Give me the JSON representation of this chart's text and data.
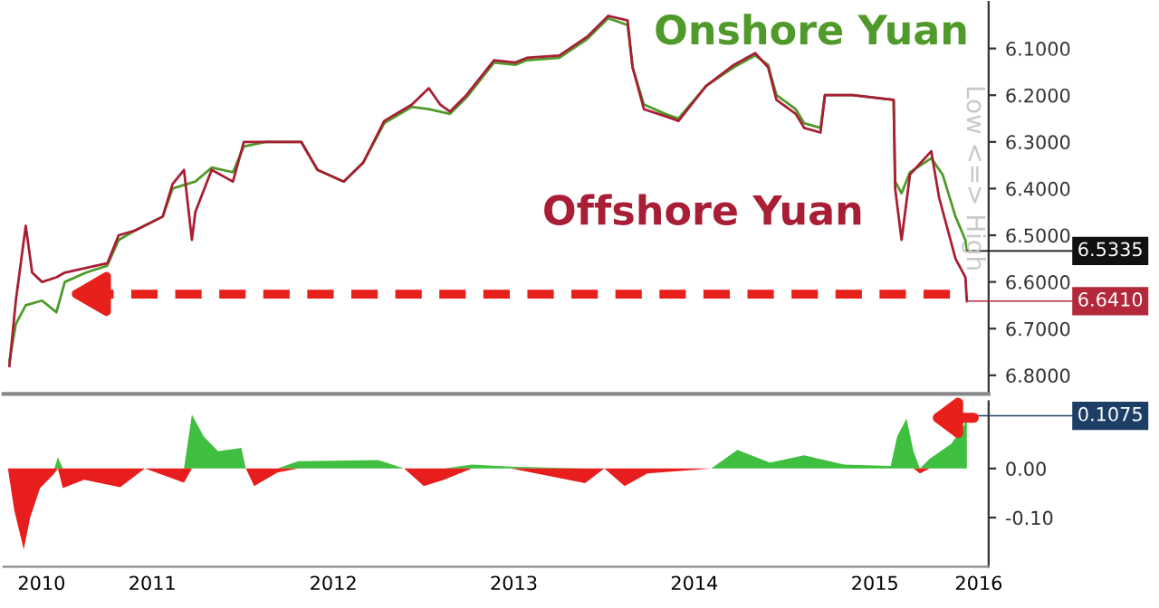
{
  "chart_data": [
    {
      "type": "line",
      "xlim": [
        "2010-09-04",
        "2016-02-17"
      ],
      "ylim": [
        6.84,
        6.0
      ],
      "yticks": [
        {
          "value": 6.1,
          "label": "6.1000"
        },
        {
          "value": 6.2,
          "label": "6.2000"
        },
        {
          "value": 6.3,
          "label": "6.3000"
        },
        {
          "value": 6.4,
          "label": "6.4000"
        },
        {
          "value": 6.5,
          "label": "6.5000"
        },
        {
          "value": 6.6,
          "label": "6.6000"
        },
        {
          "value": 6.7,
          "label": "6.7000"
        },
        {
          "value": 6.8,
          "label": "6.8000"
        }
      ],
      "tick_labels": "y",
      "grid": false,
      "legend": false,
      "ref_lines": [
        {
          "axis": "y",
          "value": 6.626,
          "color": "#e8201c",
          "line_style": "dashed"
        }
      ],
      "series": [
        {
          "name": "Onshore Yuan",
          "color": "#4f9a2a",
          "x": [
            "2010-09-16",
            "2010-09-29",
            "2010-10-19",
            "2010-11-21",
            "2010-12-20",
            "2011-01-06",
            "2011-02-18",
            "2011-04-02",
            "2011-04-25",
            "2011-05-28",
            "2011-07-23",
            "2011-08-12",
            "2011-09-27",
            "2011-10-30",
            "2011-12-12",
            "2012-01-03",
            "2012-02-16",
            "2012-04-28",
            "2012-05-31",
            "2012-07-23",
            "2012-08-31",
            "2012-10-13",
            "2012-12-08",
            "2013-01-11",
            "2013-02-23",
            "2013-03-28",
            "2013-05-23",
            "2013-07-05",
            "2013-07-28",
            "2013-10-02",
            "2013-11-27",
            "2014-01-09",
            "2014-02-17",
            "2014-02-27",
            "2014-03-22",
            "2014-05-04",
            "2014-05-31",
            "2014-07-26",
            "2014-09-20",
            "2014-11-02",
            "2014-11-28",
            "2014-12-15",
            "2015-01-23",
            "2015-02-09",
            "2015-03-14",
            "2015-03-23",
            "2015-05-18",
            "2015-08-09",
            "2015-08-12",
            "2015-08-25",
            "2015-09-11",
            "2015-10-24",
            "2015-11-16",
            "2015-12-12",
            "2016-01-01",
            "2016-01-04"
          ],
          "values": [
            6.77,
            6.69,
            6.65,
            6.64,
            6.665,
            6.6,
            6.58,
            6.565,
            6.51,
            6.49,
            6.46,
            6.4,
            6.385,
            6.355,
            6.365,
            6.31,
            6.3,
            6.3,
            6.36,
            6.385,
            6.345,
            6.26,
            6.225,
            6.23,
            6.24,
            6.205,
            6.13,
            6.135,
            6.125,
            6.12,
            6.08,
            6.035,
            6.05,
            6.14,
            6.22,
            6.24,
            6.25,
            6.18,
            6.14,
            6.115,
            6.135,
            6.2,
            6.23,
            6.26,
            6.27,
            6.2,
            6.2,
            6.21,
            6.385,
            6.41,
            6.365,
            6.335,
            6.37,
            6.46,
            6.51,
            6.5335
          ]
        },
        {
          "name": "Offshore Yuan",
          "color": "#a81e34",
          "x": [
            "2010-09-16",
            "2010-09-29",
            "2010-10-19",
            "2010-11-01",
            "2010-11-21",
            "2010-12-20",
            "2011-01-06",
            "2011-02-18",
            "2011-04-02",
            "2011-04-25",
            "2011-05-28",
            "2011-07-23",
            "2011-08-12",
            "2011-09-04",
            "2011-09-20",
            "2011-09-27",
            "2011-10-30",
            "2011-12-12",
            "2012-01-03",
            "2012-02-16",
            "2012-04-28",
            "2012-05-31",
            "2012-07-23",
            "2012-08-31",
            "2012-10-13",
            "2012-12-08",
            "2013-01-11",
            "2013-02-03",
            "2013-02-23",
            "2013-03-28",
            "2013-05-23",
            "2013-07-05",
            "2013-07-28",
            "2013-10-02",
            "2013-11-27",
            "2014-01-09",
            "2014-02-17",
            "2014-02-27",
            "2014-03-22",
            "2014-05-04",
            "2014-05-31",
            "2014-07-26",
            "2014-09-20",
            "2014-11-02",
            "2014-11-28",
            "2014-12-15",
            "2015-01-23",
            "2015-02-09",
            "2015-03-14",
            "2015-03-23",
            "2015-05-18",
            "2015-08-09",
            "2015-08-12",
            "2015-08-25",
            "2015-09-11",
            "2015-10-24",
            "2015-11-09",
            "2015-12-12",
            "2016-01-01",
            "2016-01-04"
          ],
          "values": [
            6.78,
            6.64,
            6.48,
            6.58,
            6.6,
            6.59,
            6.58,
            6.57,
            6.56,
            6.5,
            6.49,
            6.46,
            6.39,
            6.36,
            6.51,
            6.45,
            6.36,
            6.385,
            6.3,
            6.3,
            6.3,
            6.36,
            6.385,
            6.345,
            6.255,
            6.22,
            6.185,
            6.22,
            6.235,
            6.2,
            6.125,
            6.13,
            6.12,
            6.115,
            6.075,
            6.03,
            6.04,
            6.14,
            6.23,
            6.245,
            6.255,
            6.18,
            6.135,
            6.11,
            6.14,
            6.21,
            6.24,
            6.27,
            6.28,
            6.2,
            6.2,
            6.21,
            6.4,
            6.51,
            6.37,
            6.32,
            6.42,
            6.55,
            6.59,
            6.641
          ]
        }
      ],
      "annotations": [
        {
          "text": "6.5335",
          "x": "2016-01-04",
          "y": 6.5335
        },
        {
          "text": "6.6410",
          "x": "2016-01-04",
          "y": 6.641
        },
        "Low <=> High"
      ]
    },
    {
      "type": "area",
      "xlim": [
        "2010-09-04",
        "2016-02-17"
      ],
      "ylim": [
        -0.2,
        0.137
      ],
      "yticks": [
        {
          "value": 0,
          "label": "0.00"
        },
        {
          "value": -0.1,
          "label": "-0.10"
        }
      ],
      "xticks": [
        {
          "value": "2010-11-20",
          "label": "2010"
        },
        {
          "value": "2011-07-02",
          "label": "2011"
        },
        {
          "value": "2012-07-02",
          "label": "2012"
        },
        {
          "value": "2013-07-02",
          "label": "2013"
        },
        {
          "value": "2014-07-02",
          "label": "2014"
        },
        {
          "value": "2015-07-02",
          "label": "2015"
        },
        {
          "value": "2016-01-28",
          "label": "2016"
        }
      ],
      "grid": false,
      "legend": false,
      "x": [
        "2010-09-13",
        "2010-09-26",
        "2010-10-15",
        "2010-10-28",
        "2010-11-17",
        "2010-12-16",
        "2010-12-23",
        "2011-01-02",
        "2011-02-14",
        "2011-04-28",
        "2011-06-17",
        "2011-09-04",
        "2011-09-20",
        "2011-10-14",
        "2011-11-12",
        "2011-12-29",
        "2012-01-07",
        "2012-01-24",
        "2012-03-11",
        "2012-04-22",
        "2012-10-01",
        "2012-11-22",
        "2013-01-01",
        "2013-02-11",
        "2013-04-08",
        "2013-06-26",
        "2013-11-23",
        "2014-01-01",
        "2014-02-11",
        "2014-03-29",
        "2014-08-05",
        "2014-09-27",
        "2014-12-02",
        "2015-02-09",
        "2015-05-01",
        "2015-08-03",
        "2015-08-16",
        "2015-09-04",
        "2015-09-18",
        "2015-10-01",
        "2015-10-21",
        "2015-12-03",
        "2015-12-29",
        "2016-01-04"
      ],
      "series": [
        {
          "color": "#3fbf3f",
          "values": [
            0,
            0,
            0,
            0,
            0,
            0,
            0.023,
            0,
            0,
            0,
            0,
            0,
            0.11,
            0.065,
            0.035,
            0.042,
            0,
            0,
            0,
            0.015,
            0.017,
            0,
            0,
            0,
            0.008,
            0.004,
            0,
            0,
            0,
            0,
            0,
            0.038,
            0.012,
            0.027,
            0.008,
            0.005,
            0.065,
            0.102,
            0.035,
            0,
            0.02,
            0.05,
            0.087,
            0.1075
          ]
        },
        {
          "color": "#e81d1d",
          "values": [
            0,
            -0.086,
            -0.165,
            -0.1,
            -0.04,
            -0.01,
            0,
            -0.04,
            -0.023,
            -0.038,
            0,
            -0.029,
            0,
            0,
            0,
            0,
            0,
            -0.036,
            -0.008,
            0,
            0,
            0,
            -0.036,
            -0.023,
            0,
            0,
            -0.03,
            0,
            -0.036,
            -0.01,
            0,
            0,
            0,
            0,
            0,
            0,
            0,
            0,
            0,
            -0.01,
            0,
            0,
            0,
            0
          ]
        }
      ],
      "annotations": [
        {
          "text": "0.1075",
          "x": "2016-01-04",
          "y": 0.1075
        }
      ]
    }
  ]
}
